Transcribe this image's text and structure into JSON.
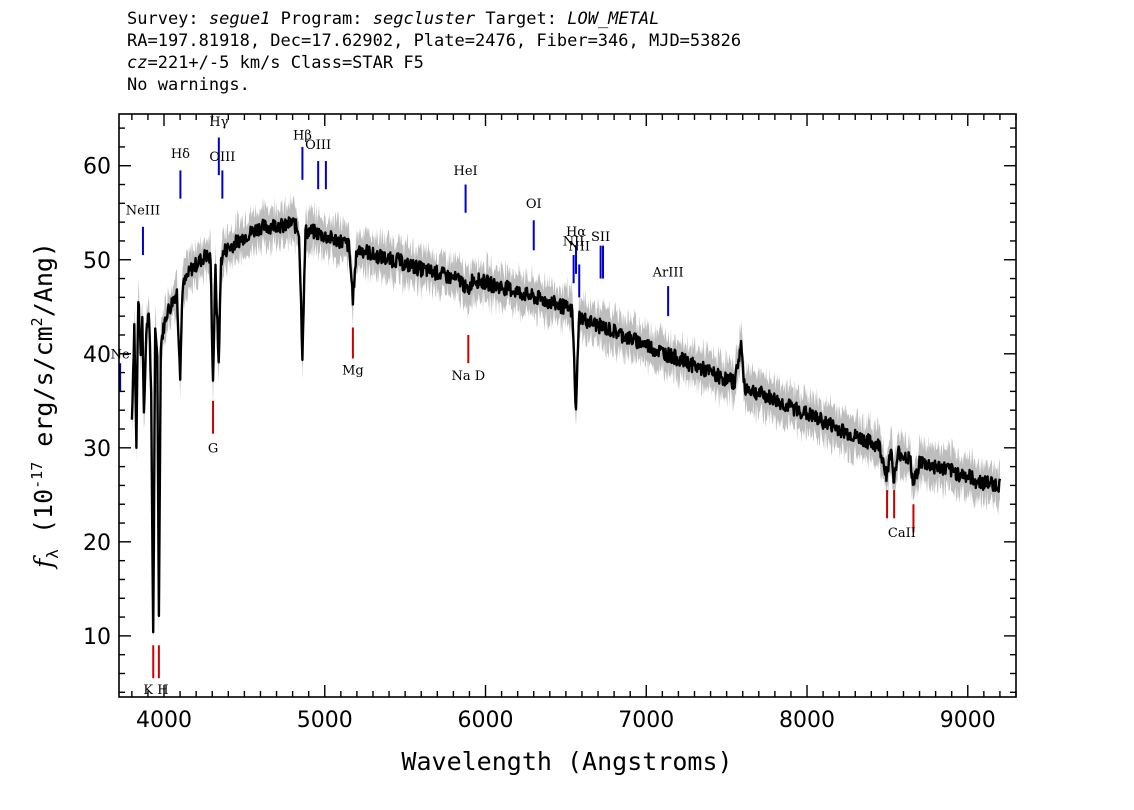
{
  "header": {
    "survey_label": "Survey:",
    "survey": "segue1",
    "program_label": "Program:",
    "program": "segcluster",
    "target_label": "Target:",
    "target": "LOW_METAL",
    "line2": "RA=197.81918, Dec=17.62902, Plate=2476, Fiber=346, MJD=53826",
    "cz_label": "cz",
    "cz_value": "=221+/-5 km/s Class=STAR F5",
    "line4": "No warnings."
  },
  "chart_data": {
    "type": "line",
    "xlabel": "Wavelength (Angstroms)",
    "ylabel_prefix": "f",
    "ylabel_sub": "λ",
    "ylabel_main": " (10",
    "ylabel_exp1": "-17",
    "ylabel_mid": " erg/s/cm",
    "ylabel_exp2": "2",
    "ylabel_end": "/Ang)",
    "xlim": [
      3720,
      9300
    ],
    "ylim": [
      3.5,
      65.5
    ],
    "xticks": [
      4000,
      5000,
      6000,
      7000,
      8000,
      9000
    ],
    "yticks": [
      10,
      20,
      30,
      40,
      50,
      60
    ],
    "colors": {
      "spectrum": "#000000",
      "error": "#bdbdbd",
      "emission": "#0000cc",
      "absorption": "#cc0000"
    },
    "spectrum": [
      [
        3800,
        33
      ],
      [
        3815,
        43
      ],
      [
        3828,
        30
      ],
      [
        3840,
        46
      ],
      [
        3855,
        40
      ],
      [
        3865,
        44
      ],
      [
        3875,
        34
      ],
      [
        3890,
        42
      ],
      [
        3905,
        45
      ],
      [
        3920,
        36
      ],
      [
        3933,
        10
      ],
      [
        3945,
        42
      ],
      [
        3958,
        40
      ],
      [
        3968,
        12.5
      ],
      [
        3980,
        41
      ],
      [
        4000,
        43
      ],
      [
        4020,
        44.5
      ],
      [
        4040,
        45
      ],
      [
        4060,
        46
      ],
      [
        4080,
        46.5
      ],
      [
        4101,
        38
      ],
      [
        4115,
        47
      ],
      [
        4140,
        48
      ],
      [
        4170,
        49
      ],
      [
        4200,
        49.5
      ],
      [
        4230,
        50
      ],
      [
        4260,
        50.5
      ],
      [
        4290,
        50
      ],
      [
        4305,
        37
      ],
      [
        4320,
        49
      ],
      [
        4340,
        39
      ],
      [
        4355,
        50
      ],
      [
        4380,
        51
      ],
      [
        4420,
        51.5
      ],
      [
        4460,
        52
      ],
      [
        4500,
        52.5
      ],
      [
        4550,
        53
      ],
      [
        4600,
        53.5
      ],
      [
        4650,
        53.5
      ],
      [
        4700,
        53.8
      ],
      [
        4750,
        53.5
      ],
      [
        4800,
        54
      ],
      [
        4840,
        53
      ],
      [
        4861,
        40
      ],
      [
        4880,
        53
      ],
      [
        4920,
        53
      ],
      [
        4960,
        52.8
      ],
      [
        5000,
        52.5
      ],
      [
        5050,
        52.2
      ],
      [
        5100,
        52
      ],
      [
        5150,
        51.5
      ],
      [
        5175,
        46
      ],
      [
        5200,
        51
      ],
      [
        5250,
        51
      ],
      [
        5300,
        50.5
      ],
      [
        5350,
        50.3
      ],
      [
        5400,
        50
      ],
      [
        5450,
        50
      ],
      [
        5500,
        49.5
      ],
      [
        5550,
        49.3
      ],
      [
        5600,
        49
      ],
      [
        5650,
        48.8
      ],
      [
        5700,
        48.6
      ],
      [
        5750,
        48.3
      ],
      [
        5800,
        48
      ],
      [
        5850,
        47.8
      ],
      [
        5890,
        46.5
      ],
      [
        5920,
        48
      ],
      [
        5950,
        47.8
      ],
      [
        6000,
        47.6
      ],
      [
        6050,
        47.3
      ],
      [
        6100,
        47.1
      ],
      [
        6150,
        46.9
      ],
      [
        6200,
        46.6
      ],
      [
        6250,
        46.3
      ],
      [
        6300,
        46
      ],
      [
        6350,
        45.8
      ],
      [
        6400,
        45.5
      ],
      [
        6450,
        45.2
      ],
      [
        6500,
        44.9
      ],
      [
        6540,
        44.5
      ],
      [
        6563,
        33.5
      ],
      [
        6580,
        44
      ],
      [
        6620,
        43.6
      ],
      [
        6660,
        43.3
      ],
      [
        6700,
        43
      ],
      [
        6750,
        42.7
      ],
      [
        6800,
        42.4
      ],
      [
        6850,
        42
      ],
      [
        6900,
        41.6
      ],
      [
        6950,
        41.3
      ],
      [
        7000,
        41
      ],
      [
        7050,
        40.5
      ],
      [
        7100,
        40.2
      ],
      [
        7150,
        39.8
      ],
      [
        7200,
        39.5
      ],
      [
        7250,
        39.1
      ],
      [
        7300,
        38.7
      ],
      [
        7350,
        38.4
      ],
      [
        7400,
        38
      ],
      [
        7450,
        37.6
      ],
      [
        7500,
        37.3
      ],
      [
        7550,
        37
      ],
      [
        7590,
        41
      ],
      [
        7610,
        36.5
      ],
      [
        7650,
        36.2
      ],
      [
        7700,
        35.8
      ],
      [
        7750,
        35.5
      ],
      [
        7800,
        35.1
      ],
      [
        7850,
        34.7
      ],
      [
        7900,
        34.3
      ],
      [
        7950,
        34
      ],
      [
        8000,
        33.6
      ],
      [
        8050,
        33.2
      ],
      [
        8100,
        32.8
      ],
      [
        8150,
        32.4
      ],
      [
        8200,
        32
      ],
      [
        8250,
        31.6
      ],
      [
        8300,
        31.2
      ],
      [
        8350,
        30.9
      ],
      [
        8400,
        30.5
      ],
      [
        8450,
        30.2
      ],
      [
        8498,
        27
      ],
      [
        8520,
        30
      ],
      [
        8542,
        26.5
      ],
      [
        8570,
        29.5
      ],
      [
        8600,
        29.2
      ],
      [
        8640,
        28.8
      ],
      [
        8662,
        26
      ],
      [
        8700,
        28.5
      ],
      [
        8750,
        28.2
      ],
      [
        8800,
        28
      ],
      [
        8850,
        27.8
      ],
      [
        8900,
        27.5
      ],
      [
        8950,
        27.2
      ],
      [
        9000,
        27
      ],
      [
        9050,
        26.5
      ],
      [
        9100,
        26.3
      ],
      [
        9150,
        26.2
      ],
      [
        9200,
        26
      ]
    ],
    "emission_lines": [
      {
        "label": "NeIII",
        "x": 3869,
        "y1": 50.5,
        "y2": 53.5,
        "ly": 54.8
      },
      {
        "label": "Hδ",
        "x": 4102,
        "y1": 56.5,
        "y2": 59.5,
        "ly": 60.8
      },
      {
        "label": "Hγ",
        "x": 4341,
        "y1": 59,
        "y2": 63,
        "ly": 64.2
      },
      {
        "label": "OIII",
        "x": 4363,
        "y1": 56.5,
        "y2": 59.5,
        "ly": 60.5
      },
      {
        "label": "Hβ",
        "x": 4861,
        "y1": 58.5,
        "y2": 62,
        "ly": 62.8
      },
      {
        "label": "OIII",
        "x": 4959,
        "y1": 57.5,
        "y2": 60.5,
        "ly": 61.8
      },
      {
        "label": "",
        "x": 5007,
        "y1": 57.5,
        "y2": 60.5,
        "ly": 0
      },
      {
        "label": "HeI",
        "x": 5876,
        "y1": 55,
        "y2": 58,
        "ly": 59
      },
      {
        "label": "OI",
        "x": 6300,
        "y1": 51,
        "y2": 54.2,
        "ly": 55.5
      },
      {
        "label": "NII",
        "x": 6548,
        "y1": 47.5,
        "y2": 50.5,
        "ly": 51.5
      },
      {
        "label": "Hα",
        "x": 6563,
        "y1": 48.5,
        "y2": 51.5,
        "ly": 52.5
      },
      {
        "label": "NII",
        "x": 6583,
        "y1": 46,
        "y2": 49.5,
        "ly": 51
      },
      {
        "label": "SII",
        "x": 6716,
        "y1": 48,
        "y2": 51.5,
        "ly": 52
      },
      {
        "label": "",
        "x": 6731,
        "y1": 48,
        "y2": 51.5,
        "ly": 0
      },
      {
        "label": "ArIII",
        "x": 7136,
        "y1": 44,
        "y2": 47.2,
        "ly": 48.2
      },
      {
        "label": "Ne",
        "x": 3727,
        "y1": 36,
        "y2": 39,
        "ly": 39.5
      }
    ],
    "absorption_lines": [
      {
        "label": "",
        "x": 3933,
        "y1": 5.5,
        "y2": 9
      },
      {
        "label": "",
        "x": 3968,
        "y1": 5.5,
        "y2": 9
      },
      {
        "label": "K H",
        "x": 3950,
        "y1": 0,
        "y2": 0,
        "ly": 3.8
      },
      {
        "label": "G",
        "x": 4305,
        "y1": 31.5,
        "y2": 35,
        "ly": 29.5
      },
      {
        "label": "Mg",
        "x": 5175,
        "y1": 39.5,
        "y2": 42.8,
        "ly": 37.8
      },
      {
        "label": "Na D",
        "x": 5893,
        "y1": 39,
        "y2": 42,
        "ly": 37.2
      },
      {
        "label": "",
        "x": 8498,
        "y1": 22.5,
        "y2": 25.5
      },
      {
        "label": "",
        "x": 8542,
        "y1": 22.5,
        "y2": 25.5
      },
      {
        "label": "",
        "x": 8662,
        "y1": 21,
        "y2": 24
      },
      {
        "label": "CaII",
        "x": 8590,
        "y1": 0,
        "y2": 0,
        "ly": 20.5
      }
    ]
  }
}
